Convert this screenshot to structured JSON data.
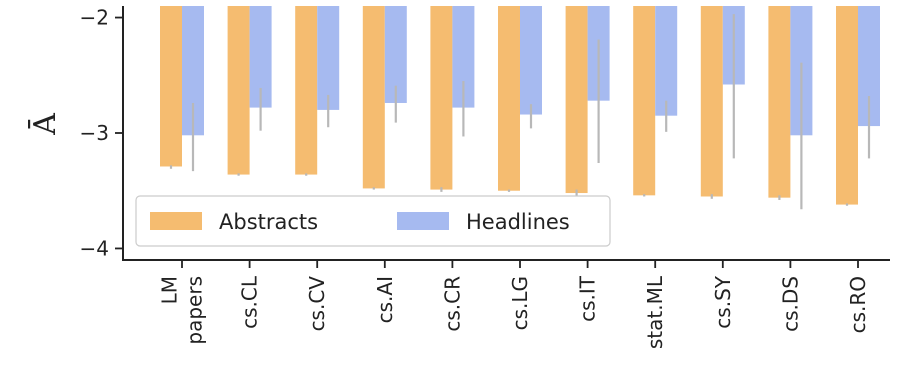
{
  "chart_data": {
    "type": "bar",
    "ylabel": "Ā",
    "xlabel": "",
    "ylim": [
      -4.1,
      -1.9
    ],
    "yticks": [
      -2,
      -3,
      -4
    ],
    "ytick_labels": [
      "−2",
      "−3",
      "−4"
    ],
    "bar_baseline": -1.9,
    "categories": [
      "LM papers",
      "cs.CL",
      "cs.CV",
      "cs.AI",
      "cs.CR",
      "cs.LG",
      "cs.IT",
      "stat.ML",
      "cs.SY",
      "cs.DS",
      "cs.RO"
    ],
    "category_lines": [
      [
        "LM",
        "papers"
      ],
      [
        "cs.CL"
      ],
      [
        "cs.CV"
      ],
      [
        "cs.AI"
      ],
      [
        "cs.CR"
      ],
      [
        "cs.LG"
      ],
      [
        "cs.IT"
      ],
      [
        "stat.ML"
      ],
      [
        "cs.SY"
      ],
      [
        "cs.DS"
      ],
      [
        "cs.RO"
      ]
    ],
    "series": [
      {
        "name": "Abstracts",
        "color": "#f5bc70",
        "values": [
          -3.29,
          -3.36,
          -3.36,
          -3.48,
          -3.49,
          -3.5,
          -3.52,
          -3.54,
          -3.55,
          -3.56,
          -3.62
        ],
        "err_low": [
          -3.31,
          -3.37,
          -3.37,
          -3.49,
          -3.51,
          -3.51,
          -3.55,
          -3.55,
          -3.57,
          -3.58,
          -3.63
        ],
        "err_high": [
          -3.28,
          -3.35,
          -3.35,
          -3.47,
          -3.47,
          -3.49,
          -3.49,
          -3.53,
          -3.53,
          -3.54,
          -3.61
        ]
      },
      {
        "name": "Headlines",
        "color": "#a6baf0",
        "values": [
          -3.02,
          -2.78,
          -2.8,
          -2.74,
          -2.78,
          -2.84,
          -2.72,
          -2.85,
          -2.58,
          -3.02,
          -2.94
        ],
        "err_low": [
          -3.33,
          -2.98,
          -2.95,
          -2.91,
          -3.03,
          -2.96,
          -3.26,
          -2.99,
          -3.22,
          -3.66,
          -3.22
        ],
        "err_high": [
          -2.74,
          -2.61,
          -2.67,
          -2.59,
          -2.55,
          -2.75,
          -2.19,
          -2.72,
          -1.97,
          -2.39,
          -2.68
        ]
      }
    ],
    "legend": {
      "position": "lower-left",
      "entries": [
        "Abstracts",
        "Headlines"
      ]
    },
    "grid": false
  }
}
